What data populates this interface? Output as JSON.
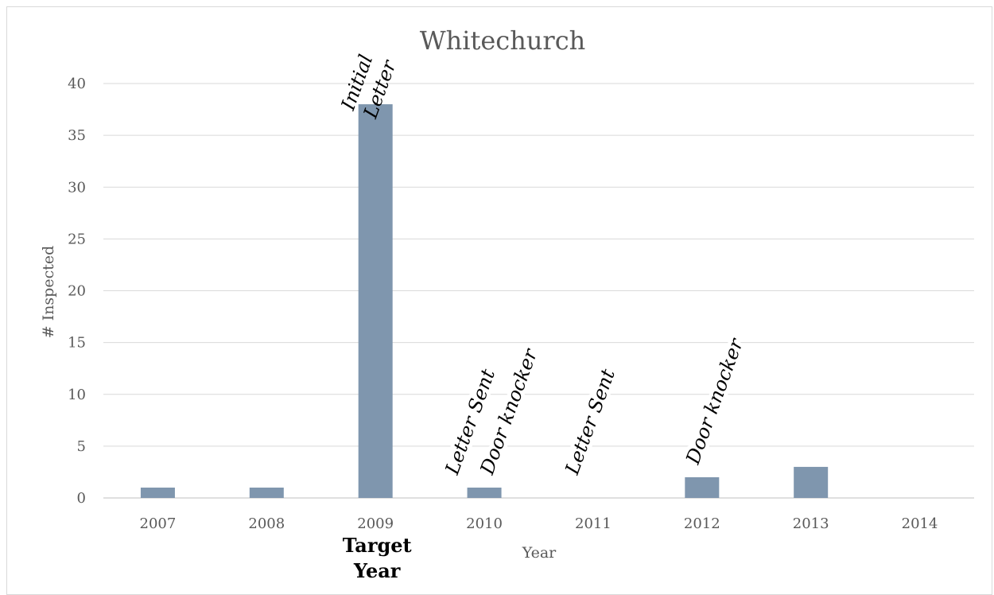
{
  "chart_data": {
    "type": "bar",
    "title": "Whitechurch",
    "xlabel": "Year",
    "ylabel": "# Inspected",
    "categories": [
      "2007",
      "2008",
      "2009",
      "2010",
      "2011",
      "2012",
      "2013",
      "2014"
    ],
    "values": [
      1,
      1,
      38,
      1,
      0,
      2,
      3,
      0
    ],
    "ylim": [
      0,
      40
    ],
    "yticks": [
      0,
      5,
      10,
      15,
      20,
      25,
      30,
      35,
      40
    ],
    "grid": true,
    "bar_color": "#7f96ae",
    "annotations": [
      {
        "category": "2009",
        "lines": [
          "Initial",
          "Letter"
        ]
      },
      {
        "category": "2010",
        "lines": [
          "Letter Sent"
        ]
      },
      {
        "category": "2010",
        "lines": [
          "Door knocker"
        ]
      },
      {
        "category": "2011",
        "lines": [
          "Letter Sent"
        ]
      },
      {
        "category": "2012",
        "lines": [
          "Door knocker"
        ]
      }
    ],
    "target_label": {
      "category": "2009",
      "lines": [
        "Target",
        "Year"
      ]
    }
  }
}
